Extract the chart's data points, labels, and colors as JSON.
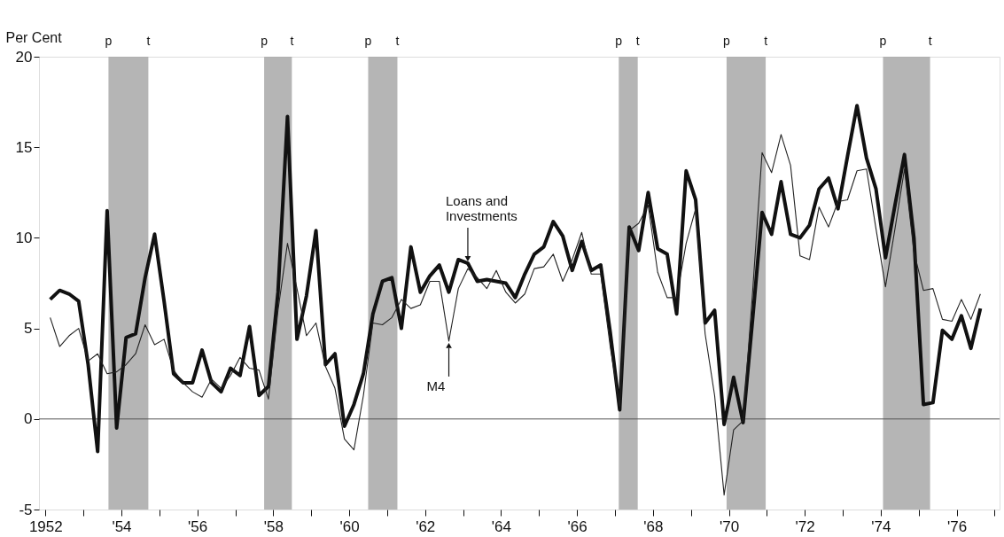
{
  "chart_data": {
    "type": "line",
    "ylabel": "Per Cent",
    "x": [
      1952.125,
      1952.375,
      1952.625,
      1952.875,
      1953.125,
      1953.375,
      1953.625,
      1953.875,
      1954.125,
      1954.375,
      1954.625,
      1954.875,
      1955.125,
      1955.375,
      1955.625,
      1955.875,
      1956.125,
      1956.375,
      1956.625,
      1956.875,
      1957.125,
      1957.375,
      1957.625,
      1957.875,
      1958.125,
      1958.375,
      1958.625,
      1958.875,
      1959.125,
      1959.375,
      1959.625,
      1959.875,
      1960.125,
      1960.375,
      1960.625,
      1960.875,
      1961.125,
      1961.375,
      1961.625,
      1961.875,
      1962.125,
      1962.375,
      1962.625,
      1962.875,
      1963.125,
      1963.375,
      1963.625,
      1963.875,
      1964.125,
      1964.375,
      1964.625,
      1964.875,
      1965.125,
      1965.375,
      1965.625,
      1965.875,
      1966.125,
      1966.375,
      1966.625,
      1966.875,
      1967.125,
      1967.375,
      1967.625,
      1967.875,
      1968.125,
      1968.375,
      1968.625,
      1968.875,
      1969.125,
      1969.375,
      1969.625,
      1969.875,
      1970.125,
      1970.375,
      1970.625,
      1970.875,
      1971.125,
      1971.375,
      1971.625,
      1971.875,
      1972.125,
      1972.375,
      1972.625,
      1972.875,
      1973.125,
      1973.375,
      1973.625,
      1973.875,
      1974.125,
      1974.375,
      1974.625,
      1974.875,
      1975.125,
      1975.375,
      1975.625,
      1975.875,
      1976.125,
      1976.375,
      1976.625
    ],
    "series": [
      {
        "color": "#111111",
        "values": [
          6.6,
          7.1,
          6.9,
          6.5,
          3.0,
          -1.8,
          11.5,
          -0.5,
          4.5,
          4.7,
          7.8,
          10.2,
          6.5,
          2.5,
          2.0,
          2.0,
          3.8,
          2.0,
          1.5,
          2.8,
          2.4,
          5.1,
          1.3,
          1.8,
          7.0,
          16.7,
          4.4,
          6.8,
          10.4,
          3.0,
          3.6,
          -0.4,
          0.8,
          2.5,
          5.8,
          7.6,
          7.8,
          5.0,
          9.5,
          7.0,
          7.9,
          8.5,
          7.0,
          8.8,
          8.6,
          7.6,
          7.7,
          7.6,
          7.5,
          6.7,
          8.0,
          9.1,
          9.5,
          10.9,
          10.1,
          8.2,
          9.8,
          8.2,
          8.5,
          4.8,
          0.5,
          10.6,
          9.3,
          12.5,
          9.4,
          9.1,
          5.8,
          13.7,
          12.1,
          5.3,
          6.0,
          -0.3,
          2.3,
          -0.2,
          5.5,
          11.4,
          10.2,
          13.1,
          10.2,
          10.0,
          10.7,
          12.7,
          13.3,
          11.6,
          14.5,
          17.3,
          14.4,
          12.7,
          8.9,
          11.8,
          14.6,
          10.0,
          0.8,
          0.9,
          4.9,
          4.4,
          5.7,
          3.9,
          6.1
        ]
      },
      {
        "color": "#222222",
        "values": [
          5.6,
          4.0,
          4.6,
          5.0,
          3.2,
          3.6,
          2.5,
          2.6,
          3.0,
          3.6,
          5.2,
          4.1,
          4.4,
          2.7,
          2.0,
          1.5,
          1.2,
          2.2,
          1.7,
          2.4,
          3.4,
          2.8,
          2.7,
          1.1,
          6.0,
          9.7,
          7.2,
          4.6,
          5.3,
          2.9,
          1.7,
          -1.1,
          -1.7,
          1.3,
          5.3,
          5.2,
          5.6,
          6.6,
          6.1,
          6.3,
          7.6,
          7.6,
          4.3,
          7.2,
          8.3,
          7.8,
          7.2,
          8.2,
          7.0,
          6.4,
          6.9,
          8.3,
          8.4,
          9.1,
          7.6,
          8.8,
          10.3,
          8.0,
          8.0,
          4.0,
          0.7,
          10.4,
          10.8,
          11.8,
          8.1,
          6.7,
          6.7,
          9.7,
          11.6,
          4.7,
          1.3,
          -4.2,
          -0.6,
          -0.1,
          7.0,
          14.7,
          13.6,
          15.7,
          14.0,
          9.0,
          8.8,
          11.7,
          10.6,
          12.0,
          12.1,
          13.7,
          13.8,
          10.5,
          7.3,
          10.5,
          13.8,
          9.2,
          7.1,
          7.2,
          5.5,
          5.4,
          6.6,
          5.5,
          6.9
        ]
      }
    ],
    "xlim": [
      1951.83,
      1977.13
    ],
    "xticks": [
      1952,
      {
        "value": 1953,
        "label": null
      },
      {
        "value": 1954,
        "label": "'54"
      },
      {
        "value": 1955,
        "label": null
      },
      {
        "value": 1956,
        "label": "'56"
      },
      {
        "value": 1957,
        "label": null
      },
      {
        "value": 1958,
        "label": "'58"
      },
      {
        "value": 1959,
        "label": null
      },
      {
        "value": 1960,
        "label": "'60"
      },
      {
        "value": 1961,
        "label": null
      },
      {
        "value": 1962,
        "label": "'62"
      },
      {
        "value": 1963,
        "label": null
      },
      {
        "value": 1964,
        "label": "'64"
      },
      {
        "value": 1965,
        "label": null
      },
      {
        "value": 1966,
        "label": "'66"
      },
      {
        "value": 1967,
        "label": null
      },
      {
        "value": 1968,
        "label": "'68"
      },
      {
        "value": 1969,
        "label": null
      },
      {
        "value": 1970,
        "label": "'70"
      },
      {
        "value": 1971,
        "label": null
      },
      {
        "value": 1972,
        "label": "'72"
      },
      {
        "value": 1973,
        "label": null
      },
      {
        "value": 1974,
        "label": "'74"
      },
      {
        "value": 1975,
        "label": null
      },
      {
        "value": 1976,
        "label": "'76"
      },
      {
        "value": 1977,
        "label": null
      }
    ],
    "ylim": [
      -5,
      20
    ],
    "yticks": [
      -5,
      0,
      5,
      10,
      15,
      20
    ],
    "grid": false,
    "marker": "none",
    "line_style": "solid",
    "ref_lines": [
      {
        "axis": "y",
        "value": 0,
        "color": "#555555"
      }
    ],
    "bands": [
      {
        "axis": "x",
        "from": 1953.66,
        "to": 1954.71,
        "color": "#a8a8a8"
      },
      {
        "axis": "x",
        "from": 1957.76,
        "to": 1958.49,
        "color": "#a8a8a8"
      },
      {
        "axis": "x",
        "from": 1960.5,
        "to": 1961.27,
        "color": "#a8a8a8"
      },
      {
        "axis": "x",
        "from": 1967.1,
        "to": 1967.6,
        "color": "#a8a8a8"
      },
      {
        "axis": "x",
        "from": 1969.94,
        "to": 1970.97,
        "color": "#a8a8a8"
      },
      {
        "axis": "x",
        "from": 1974.06,
        "to": 1975.3,
        "color": "#a8a8a8"
      }
    ],
    "annotations": [
      {
        "text": "p",
        "x": 1953.66,
        "y": 20
      },
      {
        "text": "t",
        "x": 1954.71,
        "y": 20
      },
      {
        "text": "p",
        "x": 1957.76,
        "y": 20
      },
      {
        "text": "t",
        "x": 1958.49,
        "y": 20
      },
      {
        "text": "p",
        "x": 1960.5,
        "y": 20
      },
      {
        "text": "t",
        "x": 1961.27,
        "y": 20
      },
      {
        "text": "p",
        "x": 1967.1,
        "y": 20
      },
      {
        "text": "t",
        "x": 1967.6,
        "y": 20
      },
      {
        "text": "p",
        "x": 1969.94,
        "y": 20
      },
      {
        "text": "t",
        "x": 1970.97,
        "y": 20
      },
      {
        "text": "p",
        "x": 1974.06,
        "y": 20
      },
      {
        "text": "t",
        "x": 1975.3,
        "y": 20
      },
      {
        "text": "Loans and\nInvestments",
        "x": 1963.125,
        "y": 8.6
      },
      {
        "text": "M4",
        "x": 1962.625,
        "y": 4.3
      }
    ]
  }
}
